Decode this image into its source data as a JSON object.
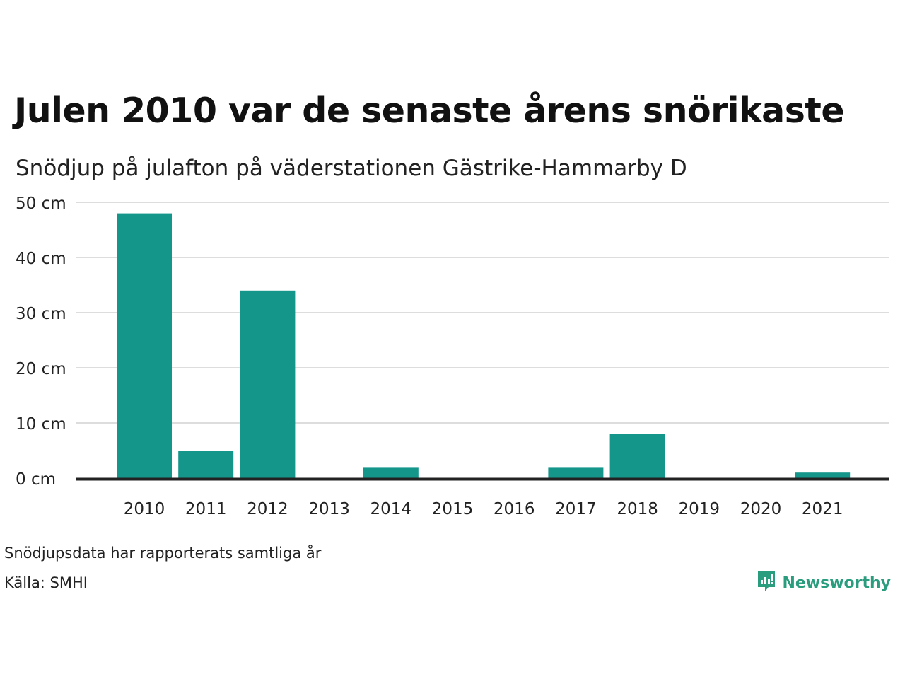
{
  "title": "Julen 2010 var de senaste årens snörikaste",
  "subtitle": "Snödjup på julafton på väderstationen Gästrike-Hammarby D",
  "note": "Snödjupsdata har rapporterats samtliga år",
  "source": "Källa: SMHI",
  "brand": {
    "name": "Newsworthy",
    "icon": "newsworthy-logo-icon",
    "color": "#2a9d7e"
  },
  "colors": {
    "bar": "#14968a",
    "grid": "#dddddd",
    "axis": "#222222"
  },
  "chart_data": {
    "type": "bar",
    "categories": [
      "2010",
      "2011",
      "2012",
      "2013",
      "2014",
      "2015",
      "2016",
      "2017",
      "2018",
      "2019",
      "2020",
      "2021"
    ],
    "values": [
      48,
      5,
      34,
      0,
      2,
      0,
      0,
      2,
      8,
      0,
      0,
      1
    ],
    "unit": "cm",
    "ylim": [
      0,
      50
    ],
    "yticks": [
      0,
      10,
      20,
      30,
      40,
      50
    ],
    "ytick_labels": [
      "0 cm",
      "10 cm",
      "20 cm",
      "30 cm",
      "40 cm",
      "50 cm"
    ],
    "grid": true,
    "legend": "none",
    "xlabel": "",
    "ylabel": ""
  }
}
